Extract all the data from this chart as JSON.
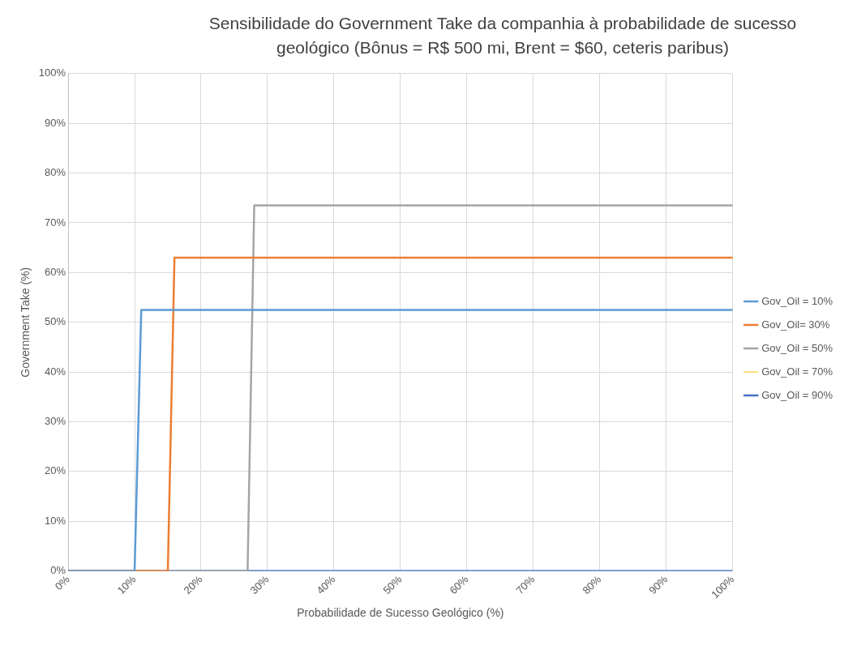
{
  "chart_data": {
    "type": "line",
    "title": "Sensibilidade do Government Take da companhia à probabilidade de sucesso geológico (Bônus = R$ 500 mi, Brent = $60, ceteris paribus)",
    "xlabel": "Probabilidade de Sucesso Geológico (%)",
    "ylabel": "Government Take (%)",
    "xlim": [
      0,
      100
    ],
    "xticks": [
      {
        "value": 0,
        "label": "0%"
      },
      {
        "value": 10,
        "label": "10%"
      },
      {
        "value": 20,
        "label": "20%"
      },
      {
        "value": 30,
        "label": "30%"
      },
      {
        "value": 40,
        "label": "40%"
      },
      {
        "value": 50,
        "label": "50%"
      },
      {
        "value": 60,
        "label": "60%"
      },
      {
        "value": 70,
        "label": "70%"
      },
      {
        "value": 80,
        "label": "80%"
      },
      {
        "value": 90,
        "label": "90%"
      },
      {
        "value": 100,
        "label": "100%"
      }
    ],
    "ylim": [
      0,
      100
    ],
    "yticks": [
      {
        "value": 0,
        "label": "0%"
      },
      {
        "value": 10,
        "label": "10%"
      },
      {
        "value": 20,
        "label": "20%"
      },
      {
        "value": 30,
        "label": "30%"
      },
      {
        "value": 40,
        "label": "40%"
      },
      {
        "value": 50,
        "label": "50%"
      },
      {
        "value": 60,
        "label": "60%"
      },
      {
        "value": 70,
        "label": "70%"
      },
      {
        "value": 80,
        "label": "80%"
      },
      {
        "value": 90,
        "label": "90%"
      },
      {
        "value": 100,
        "label": "100%"
      }
    ],
    "grid": true,
    "legend": "right",
    "marker": "none",
    "line_style": "solid",
    "series": [
      {
        "name": "Gov_Oil = 10%",
        "color": "#5b9bd5",
        "x": [
          0,
          10,
          11,
          100
        ],
        "values": [
          0,
          0,
          52.5,
          52.5
        ]
      },
      {
        "name": "Gov_Oil= 30%",
        "color": "#ed7d31",
        "x": [
          0,
          15,
          16,
          100
        ],
        "values": [
          0,
          0,
          63,
          63
        ]
      },
      {
        "name": "Gov_Oil = 50%",
        "color": "#a5a5a5",
        "x": [
          0,
          27,
          28,
          100
        ],
        "values": [
          0,
          0,
          73.5,
          73.5
        ]
      },
      {
        "name": "Gov_Oil = 70%",
        "color": "#ffc000"
      },
      {
        "name": "Gov_Oil = 90%",
        "color": "#4472c4",
        "x": [
          0,
          100
        ],
        "values": [
          0,
          0
        ]
      }
    ]
  }
}
